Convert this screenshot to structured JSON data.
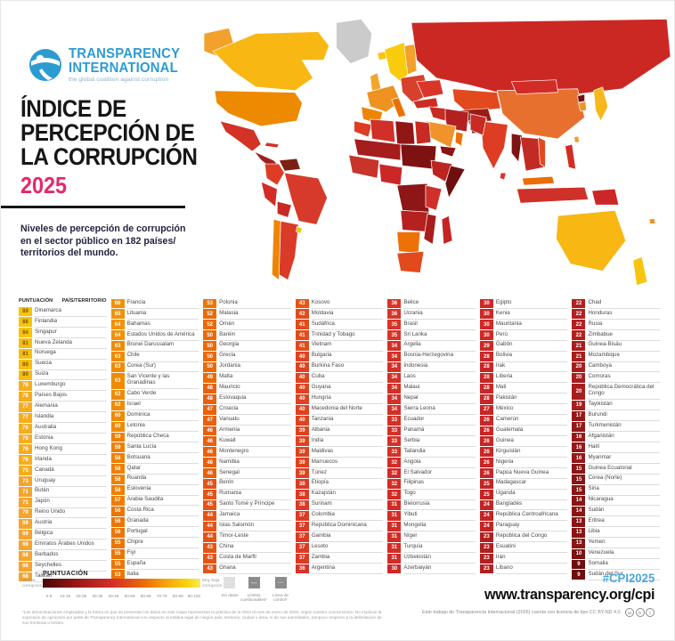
{
  "brand": {
    "org_line1": "TRANSPARENCY",
    "org_line2": "INTERNATIONAL",
    "tagline": "the global coalition against corruption"
  },
  "title": {
    "line1": "ÍNDICE DE",
    "line2": "PERCEPCIÓN DE",
    "line3": "LA CORRUPCIÓN",
    "year": "2025"
  },
  "subtitle": {
    "line1": "Niveles de percepción de corrupción",
    "line2": "en el sector público en 182 países/",
    "line3": "territorios del mundo."
  },
  "table": {
    "header_score": "PUNTUACIÓN",
    "header_country": "PAÍS/TERRITORIO"
  },
  "chart_data": {
    "type": "table",
    "title": "Índice de Percepción de la Corrupción 2025",
    "value_range": [
      0,
      100
    ],
    "columns": [
      [
        [
          89,
          "Dinamarca"
        ],
        [
          88,
          "Finlandia"
        ],
        [
          84,
          "Singapur"
        ],
        [
          81,
          "Nueva Zelanda"
        ],
        [
          81,
          "Noruega"
        ],
        [
          80,
          "Suecia"
        ],
        [
          80,
          "Suiza"
        ],
        [
          78,
          "Luxemburgo"
        ],
        [
          78,
          "Países Bajos"
        ],
        [
          77,
          "Alemania"
        ],
        [
          77,
          "Islandia"
        ],
        [
          76,
          "Australia"
        ],
        [
          76,
          "Estonia"
        ],
        [
          76,
          "Hong Kong"
        ],
        [
          76,
          "Irlanda"
        ],
        [
          75,
          "Canadá"
        ],
        [
          73,
          "Uruguay"
        ],
        [
          71,
          "Bután"
        ],
        [
          71,
          "Japón"
        ],
        [
          70,
          "Reino Unido"
        ],
        [
          69,
          "Austria"
        ],
        [
          69,
          "Bélgica"
        ],
        [
          69,
          "Emiratos Árabes Unidos"
        ],
        [
          68,
          "Barbados"
        ],
        [
          68,
          "Seychelles"
        ],
        [
          68,
          "Taiwán"
        ]
      ],
      [
        [
          66,
          "Francia"
        ],
        [
          65,
          "Lituania"
        ],
        [
          64,
          "Bahamas"
        ],
        [
          64,
          "Estados Unidos de América"
        ],
        [
          63,
          "Brunei Darussalam"
        ],
        [
          63,
          "Chile"
        ],
        [
          63,
          "Corea (Sur)"
        ],
        [
          63,
          "San Vicente y las Granadinas"
        ],
        [
          62,
          "Cabo Verde"
        ],
        [
          62,
          "Israel"
        ],
        [
          60,
          "Dominica"
        ],
        [
          60,
          "Letonia"
        ],
        [
          59,
          "República Checa"
        ],
        [
          59,
          "Santa Lucía"
        ],
        [
          58,
          "Botsuana"
        ],
        [
          58,
          "Qatar"
        ],
        [
          58,
          "Ruanda"
        ],
        [
          58,
          "Eslovenia"
        ],
        [
          57,
          "Arabia Saudita"
        ],
        [
          56,
          "Costa Rica"
        ],
        [
          56,
          "Granada"
        ],
        [
          56,
          "Portugal"
        ],
        [
          55,
          "Chipre"
        ],
        [
          55,
          "Fiyi"
        ],
        [
          55,
          "España"
        ],
        [
          53,
          "Italia"
        ]
      ],
      [
        [
          53,
          "Polonia"
        ],
        [
          52,
          "Malasia"
        ],
        [
          52,
          "Omán"
        ],
        [
          50,
          "Baréin"
        ],
        [
          50,
          "Georgia"
        ],
        [
          50,
          "Grecia"
        ],
        [
          50,
          "Jordania"
        ],
        [
          49,
          "Malta"
        ],
        [
          48,
          "Mauricio"
        ],
        [
          48,
          "Eslovaquia"
        ],
        [
          47,
          "Croacia"
        ],
        [
          47,
          "Vanuatu"
        ],
        [
          46,
          "Armenia"
        ],
        [
          46,
          "Kuwait"
        ],
        [
          46,
          "Montenegro"
        ],
        [
          46,
          "Namibia"
        ],
        [
          46,
          "Senegal"
        ],
        [
          45,
          "Benín"
        ],
        [
          45,
          "Rumania"
        ],
        [
          45,
          "Santo Tomé y Príncipe"
        ],
        [
          44,
          "Jamaica"
        ],
        [
          44,
          "Islas Salomón"
        ],
        [
          44,
          "Timor-Leste"
        ],
        [
          43,
          "China"
        ],
        [
          43,
          "Costa de Marfil"
        ],
        [
          43,
          "Ghana"
        ]
      ],
      [
        [
          43,
          "Kosovo"
        ],
        [
          42,
          "Moldavia"
        ],
        [
          41,
          "Sudáfrica"
        ],
        [
          41,
          "Trinidad y Tobago"
        ],
        [
          41,
          "Vietnam"
        ],
        [
          40,
          "Bulgaria"
        ],
        [
          40,
          "Burkina Faso"
        ],
        [
          40,
          "Cuba"
        ],
        [
          40,
          "Guyana"
        ],
        [
          40,
          "Hungría"
        ],
        [
          40,
          "Macedonia del Norte"
        ],
        [
          40,
          "Tanzania"
        ],
        [
          39,
          "Albania"
        ],
        [
          39,
          "India"
        ],
        [
          39,
          "Maldivas"
        ],
        [
          39,
          "Marruecos"
        ],
        [
          39,
          "Túnez"
        ],
        [
          38,
          "Etiopía"
        ],
        [
          38,
          "Kazajstán"
        ],
        [
          38,
          "Surinam"
        ],
        [
          37,
          "Colombia"
        ],
        [
          37,
          "República Dominicana"
        ],
        [
          37,
          "Gambia"
        ],
        [
          37,
          "Lesoto"
        ],
        [
          37,
          "Zambia"
        ],
        [
          36,
          "Argentina"
        ]
      ],
      [
        [
          36,
          "Belice"
        ],
        [
          36,
          "Ucrania"
        ],
        [
          35,
          "Brasil"
        ],
        [
          35,
          "Sri Lanka"
        ],
        [
          34,
          "Argelia"
        ],
        [
          34,
          "Bosnia-Herzegovina"
        ],
        [
          34,
          "Indonesia"
        ],
        [
          34,
          "Laos"
        ],
        [
          34,
          "Malaui"
        ],
        [
          34,
          "Nepal"
        ],
        [
          34,
          "Sierra Leona"
        ],
        [
          33,
          "Ecuador"
        ],
        [
          33,
          "Panamá"
        ],
        [
          33,
          "Serbia"
        ],
        [
          33,
          "Tailandia"
        ],
        [
          32,
          "Angola"
        ],
        [
          32,
          "El Salvador"
        ],
        [
          32,
          "Filipinas"
        ],
        [
          32,
          "Togo"
        ],
        [
          31,
          "Bielorrusia"
        ],
        [
          31,
          "Yibuti"
        ],
        [
          31,
          "Mongolia"
        ],
        [
          31,
          "Níger"
        ],
        [
          31,
          "Turquía"
        ],
        [
          31,
          "Uzbekistán"
        ],
        [
          30,
          "Azerbaiyán"
        ]
      ],
      [
        [
          30,
          "Egipto"
        ],
        [
          30,
          "Kenia"
        ],
        [
          30,
          "Mauritania"
        ],
        [
          30,
          "Perú"
        ],
        [
          29,
          "Gabón"
        ],
        [
          28,
          "Bolivia"
        ],
        [
          28,
          "Irak"
        ],
        [
          28,
          "Liberia"
        ],
        [
          28,
          "Malí"
        ],
        [
          28,
          "Pakistán"
        ],
        [
          27,
          "México"
        ],
        [
          26,
          "Camerún"
        ],
        [
          26,
          "Guatemala"
        ],
        [
          26,
          "Guinea"
        ],
        [
          26,
          "Kirguistán"
        ],
        [
          26,
          "Nigeria"
        ],
        [
          26,
          "Papúa Nueva Guinea"
        ],
        [
          25,
          "Madagascar"
        ],
        [
          25,
          "Uganda"
        ],
        [
          24,
          "Bangladés"
        ],
        [
          24,
          "República Centroafricana"
        ],
        [
          24,
          "Paraguay"
        ],
        [
          23,
          "República del Congo"
        ],
        [
          23,
          "Esuatini"
        ],
        [
          23,
          "Irán"
        ],
        [
          23,
          "Líbano"
        ]
      ],
      [
        [
          22,
          "Chad"
        ],
        [
          22,
          "Honduras"
        ],
        [
          22,
          "Rusia"
        ],
        [
          22,
          "Zimbabue"
        ],
        [
          21,
          "Guinea-Bisáu"
        ],
        [
          21,
          "Mozambique"
        ],
        [
          20,
          "Camboya"
        ],
        [
          20,
          "Comoras"
        ],
        [
          20,
          "República Democrática del Congo"
        ],
        [
          19,
          "Tayikistán"
        ],
        [
          17,
          "Burundi"
        ],
        [
          17,
          "Turkmenistán"
        ],
        [
          16,
          "Afganistán"
        ],
        [
          16,
          "Haití"
        ],
        [
          16,
          "Myanmar"
        ],
        [
          15,
          "Guinea Ecuatorial"
        ],
        [
          15,
          "Corea (Norte)"
        ],
        [
          15,
          "Siria"
        ],
        [
          14,
          "Nicaragua"
        ],
        [
          14,
          "Sudán"
        ],
        [
          13,
          "Eritrea"
        ],
        [
          13,
          "Libia"
        ],
        [
          13,
          "Yemen"
        ],
        [
          10,
          "Venezuela"
        ],
        [
          9,
          "Somalia"
        ],
        [
          9,
          "Sudán del Sur"
        ]
      ]
    ]
  },
  "legend": {
    "title": "PUNTUACIÓN",
    "left_label": "Mucha corrupción",
    "right_label": "Muy baja corrupción",
    "ticks": [
      "0-9",
      "10-19",
      "20-29",
      "30-39",
      "40-49",
      "50-59",
      "60-69",
      "70-79",
      "80-89",
      "90-100"
    ],
    "no_data_label": "Sin datos",
    "disputed_label": "Límites cuestionables*",
    "control_line_label": "Línea de control*"
  },
  "footer": {
    "hashtag": "#CPI2025",
    "url": "www.transparency.org/cpi",
    "license": "Este trabajo de Transparencia Internacional (2026) cuenta con licencia de tipo CC BY-ND 4.0.",
    "disclaimer": "*Las denominaciones empleadas y la forma en que se presentan los datos en este mapa representan la práctica de la ONU al mes de enero de 2026, según nuestro conocimiento. No implican la expresión de opiniones por parte de Transparency International con respecto al estatus legal de ningún país, territorio, ciudad o área, ni de sus autoridades, tampoco respecto a la delimitación de sus fronteras o límites."
  },
  "colors": {
    "brand_blue": "#2D9BD3",
    "year_pink": "#E4286B",
    "hashtag_blue": "#4BA7DB",
    "chip_dark_text": "#7A5800",
    "score_scale": [
      [
        84,
        "#F9C306"
      ],
      [
        80,
        "#F9BC10"
      ],
      [
        75,
        "#F7AC1E"
      ],
      [
        68,
        "#F5A42C"
      ],
      [
        64,
        "#F29104"
      ],
      [
        60,
        "#F08A00"
      ],
      [
        57,
        "#EF7F00"
      ],
      [
        53,
        "#ED7503"
      ],
      [
        49,
        "#EB6A06"
      ],
      [
        46,
        "#E9600D"
      ],
      [
        43,
        "#E55415"
      ],
      [
        41,
        "#E24B1C"
      ],
      [
        39,
        "#DF4220"
      ],
      [
        37,
        "#DC3A24"
      ],
      [
        35,
        "#D83427"
      ],
      [
        33,
        "#D53027"
      ],
      [
        31,
        "#D22C27"
      ],
      [
        29,
        "#CE2926"
      ],
      [
        26,
        "#C92626"
      ],
      [
        24,
        "#C32424"
      ],
      [
        22,
        "#B31F1F"
      ],
      [
        19,
        "#A81D1D"
      ],
      [
        16,
        "#961818"
      ],
      [
        13,
        "#8A1515"
      ],
      [
        10,
        "#7C1212"
      ],
      [
        0,
        "#6E0F0F"
      ]
    ]
  },
  "map": {
    "region_fills": {
      "greenland": "#CBCBCB",
      "alaska": "#F2A12C",
      "canada": "#F8B713",
      "usa": "#ED8A00",
      "mexico": "#D33227",
      "cuba": "#D33227",
      "central-america": "#A02020",
      "venezuela": "#7A2014",
      "colombia": "#DE3D24",
      "brazil": "#D73A2A",
      "peru": "#D32C27",
      "bolivia": "#C82A24",
      "chile": "#EE8500",
      "argentina": "#DA3A28",
      "uruguay": "#F6C70E",
      "iceland": "#F8C40D",
      "uk": "#F2A52A",
      "scandinavia": "#F8CB0C",
      "finland": "#F2A12C",
      "west-europe": "#EE9220",
      "iberia": "#EE8500",
      "italy": "#EC7100",
      "east-europe": "#D6402C",
      "ukraine": "#D93629",
      "turkey": "#CE2B24",
      "russia": "#CC2823",
      "kazakhstan": "#E24A1E",
      "central-asia": "#9A1B16",
      "afghanistan": "#701410",
      "iran": "#B32020",
      "iraq-syria": "#C62B24",
      "saudi": "#F0932A",
      "yemen": "#8C1414",
      "oman": "#EC7100",
      "morocco": "#DE3D24",
      "algeria": "#D03028",
      "libya": "#911717",
      "egypt": "#C92B24",
      "sahel": "#A61D1D",
      "chad-sudan": "#7E1111",
      "west-africa": "#C8332A",
      "nigeria": "#CB2726",
      "drc": "#8E1616",
      "ethiopia": "#BD2420",
      "somalia": "#6E0F0F",
      "kenya-tanzania": "#D0302A",
      "angola-zambia": "#B52120",
      "namibia-botswana": "#EC7106",
      "south-africa": "#E24A1E",
      "mozambique": "#A81D1B",
      "madagascar": "#C42424",
      "india": "#DE3D24",
      "pakistan": "#C62B24",
      "sri-lanka": "#D93228",
      "myanmar": "#7E1414",
      "indochina": "#C22B24",
      "vietnam": "#E24A1E",
      "china": "#E8702E",
      "mongolia": "#D32C27",
      "korea-north": "#701010",
      "korea-south": "#F0932A",
      "japan": "#F7B81C",
      "taiwan": "#F49A2E",
      "philippines": "#D32C27",
      "malaysia": "#EC6C06",
      "indonesia": "#D0302A",
      "png": "#CB2726",
      "australia": "#F8B713",
      "new-zealand": "#F8C40D",
      "fiji": "#F0932A"
    }
  }
}
